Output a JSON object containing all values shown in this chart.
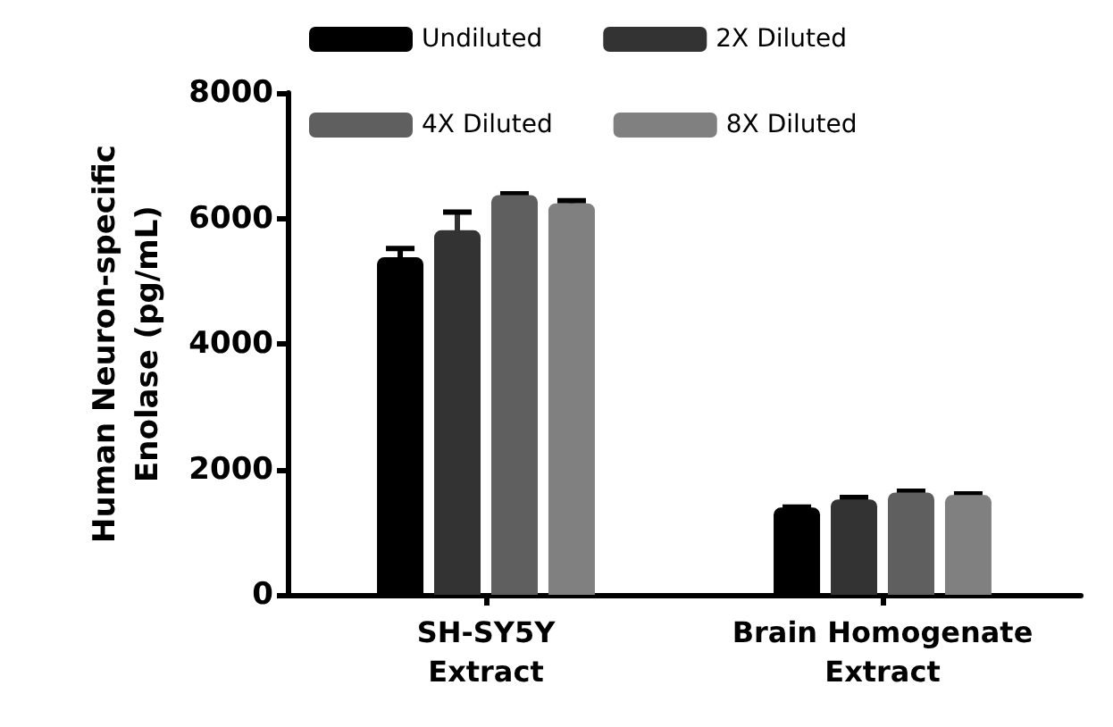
{
  "chart_data": {
    "type": "bar",
    "ylabel": "Human Neuron-specific\nEnolase (pg/mL)",
    "categories": [
      "SH-SY5Y\nExtract",
      "Brain Homogenate\nExtract"
    ],
    "series": [
      {
        "name": "Undiluted",
        "color": "#000000",
        "values": [
          5380,
          1390
        ],
        "errors": [
          140,
          10
        ]
      },
      {
        "name": "2X Diluted",
        "color": "#333333",
        "values": [
          5810,
          1520
        ],
        "errors": [
          290,
          30
        ]
      },
      {
        "name": "4X Diluted",
        "color": "#5f5f5f",
        "values": [
          6370,
          1630
        ],
        "errors": [
          20,
          20
        ]
      },
      {
        "name": "8X Diluted",
        "color": "#808080",
        "values": [
          6240,
          1590
        ],
        "errors": [
          40,
          20
        ]
      }
    ],
    "ylim": [
      0,
      8000
    ],
    "yticks": [
      0,
      2000,
      4000,
      6000,
      8000
    ],
    "grid": false,
    "legend": "top"
  }
}
